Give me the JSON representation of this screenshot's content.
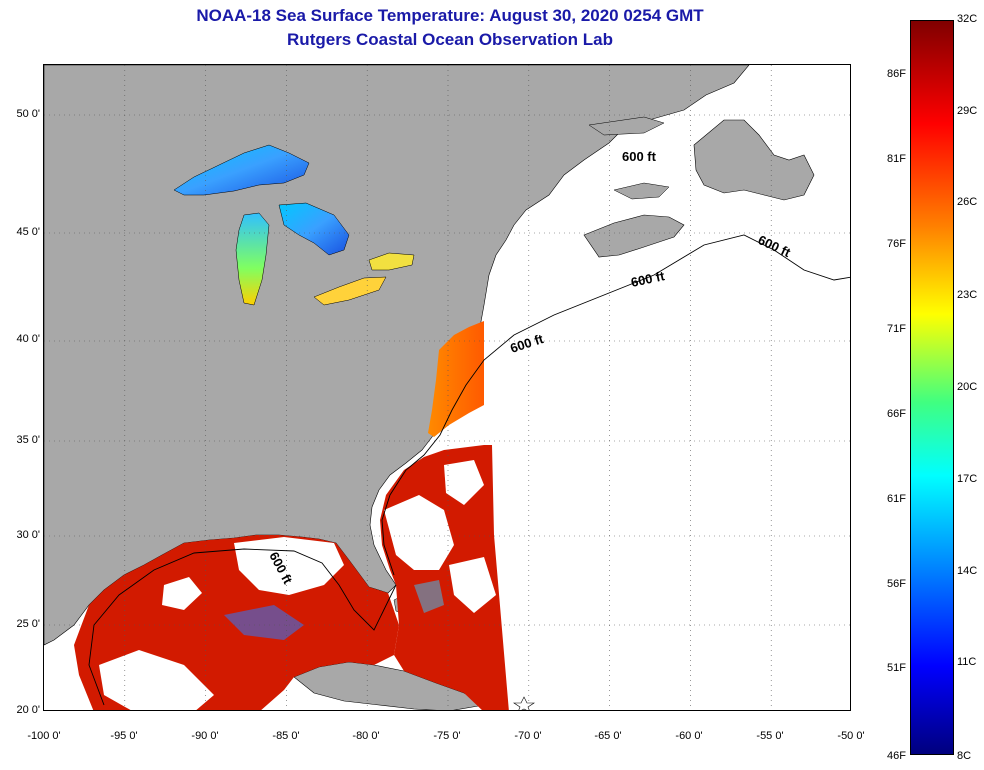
{
  "title": {
    "line1": "NOAA-18 Sea Surface Temperature:  August 30, 2020 0254 GMT",
    "line2": "Rutgers Coastal Ocean Observation Lab"
  },
  "axes": {
    "lat_labels": [
      "50 0'",
      "45 0'",
      "40 0'",
      "35 0'",
      "30 0'",
      "25 0'",
      "20 0'"
    ],
    "lon_labels": [
      "-100 0'",
      "-95 0'",
      "-90 0'",
      "-85 0'",
      "-80 0'",
      "-75 0'",
      "-70 0'",
      "-65 0'",
      "-60 0'",
      "-55 0'",
      "-50 0'"
    ]
  },
  "contours": {
    "label": "600 ft"
  },
  "colorbar": {
    "fahrenheit": [
      "86F",
      "81F",
      "76F",
      "71F",
      "66F",
      "61F",
      "56F",
      "51F",
      "46F"
    ],
    "celsius": [
      "32C",
      "29C",
      "26C",
      "23C",
      "20C",
      "17C",
      "14C",
      "11C",
      "8C"
    ]
  },
  "colors": {
    "land": "#a8a8a8",
    "cloud": "#ffffff",
    "title": "#1a1aa8",
    "warm_water": "#d21a00"
  }
}
